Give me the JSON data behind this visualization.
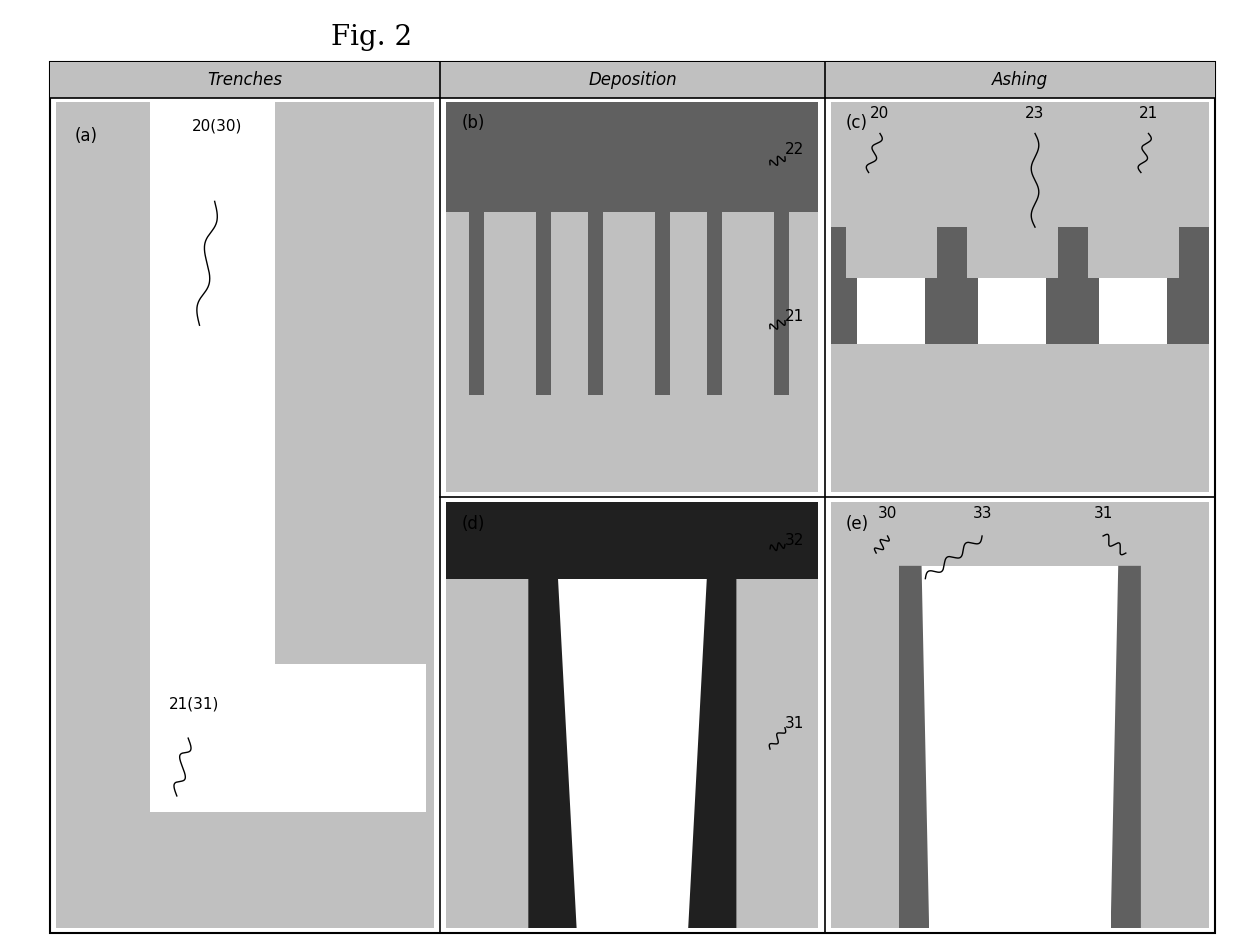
{
  "fig_title": "Fig. 2",
  "background_color": "#ffffff",
  "light_gray": "#c0c0c0",
  "medium_gray": "#989898",
  "dark_gray": "#606060",
  "very_dark": "#202020",
  "white": "#ffffff",
  "black": "#000000",
  "col_headers": [
    "Trenches",
    "Deposition",
    "Ashing"
  ],
  "panel_labels": [
    "(a)",
    "(b)",
    "(c)",
    "(d)",
    "(e)"
  ],
  "annotations": {
    "a_top": "20(30)",
    "a_bottom": "21(31)",
    "b_right_top": "22",
    "b_right_bottom": "21",
    "c_top1": "20",
    "c_top2": "23",
    "c_top3": "21",
    "d_right_top": "32",
    "d_right_bottom": "31",
    "e_top1": "30",
    "e_top2": "33",
    "e_top3": "31"
  }
}
